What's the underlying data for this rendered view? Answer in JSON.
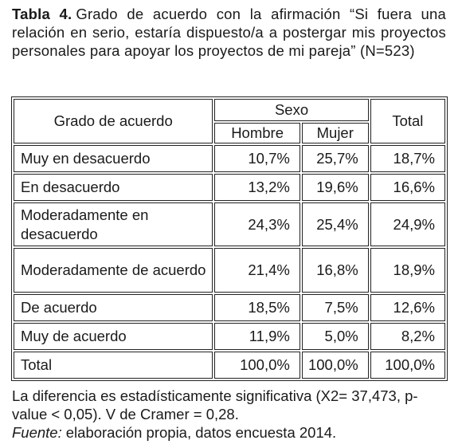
{
  "caption": {
    "label": "Tabla 4.",
    "text": "Grado de acuerdo con la afirmación “Si fuera una relación en serio, estaría dispuesto/a a postergar mis proyectos personales para apoyar los proyectos de mi pareja” (N=523)"
  },
  "table": {
    "headers": {
      "row_label": "Grado de acuerdo",
      "group": "Sexo",
      "columns": [
        "Hombre",
        "Mujer"
      ],
      "total": "Total"
    },
    "rows": [
      [
        "Muy en desacuerdo",
        "10,7%",
        "25,7%",
        "18,7%"
      ],
      [
        "En desacuerdo",
        "13,2%",
        "19,6%",
        "16,6%"
      ],
      [
        "Moderadamente en desacuerdo",
        "24,3%",
        "25,4%",
        "24,9%"
      ],
      [
        "Moderadamente de acuerdo",
        "21,4%",
        "16,8%",
        "18,9%"
      ],
      [
        "De acuerdo",
        "18,5%",
        "7,5%",
        "12,6%"
      ],
      [
        "Muy de acuerdo",
        "11,9%",
        "5,0%",
        "8,2%"
      ],
      [
        "Total",
        "100,0%",
        "100,0%",
        "100,0%"
      ]
    ]
  },
  "notes": {
    "text": "La diferencia es estadísticamente significativa (X2= 37,473, p-value < 0,05). V de Cramer = 0,28.",
    "source_label": "Fuente:",
    "source_text": "elaboración propia, datos encuesta 2014."
  }
}
